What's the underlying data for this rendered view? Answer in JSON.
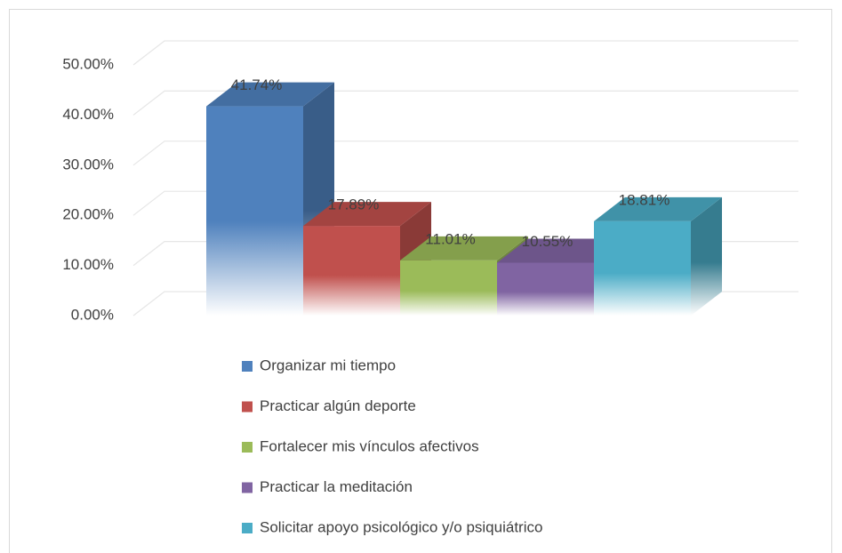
{
  "chart_data": {
    "type": "bar3d",
    "ylim": [
      0,
      50
    ],
    "yticks": [
      {
        "value": 0,
        "label": "0.00%"
      },
      {
        "value": 10,
        "label": "10.00%"
      },
      {
        "value": 20,
        "label": "20.00%"
      },
      {
        "value": 30,
        "label": "30.00%"
      },
      {
        "value": 40,
        "label": "40.00%"
      },
      {
        "value": 50,
        "label": "50.00%"
      }
    ],
    "grid": true,
    "legend": "bottom",
    "series": [
      {
        "name": "Organizar mi tiempo",
        "color": "#4f81bd",
        "values": [
          41.74
        ],
        "value_labels": [
          "41.74%"
        ]
      },
      {
        "name": "Practicar algún deporte",
        "color": "#c0504d",
        "values": [
          17.89
        ],
        "value_labels": [
          "17.89%"
        ]
      },
      {
        "name": "Fortalecer mis vínculos afectivos",
        "color": "#9bbb59",
        "values": [
          11.01
        ],
        "value_labels": [
          "11.01%"
        ]
      },
      {
        "name": "Practicar la meditación",
        "color": "#8064a2",
        "values": [
          10.55
        ],
        "value_labels": [
          "10.55%"
        ]
      },
      {
        "name": "Solicitar apoyo psicológico y/o psiquiátrico",
        "color": "#4bacc6",
        "values": [
          18.81
        ],
        "value_labels": [
          "18.81%"
        ]
      }
    ]
  }
}
